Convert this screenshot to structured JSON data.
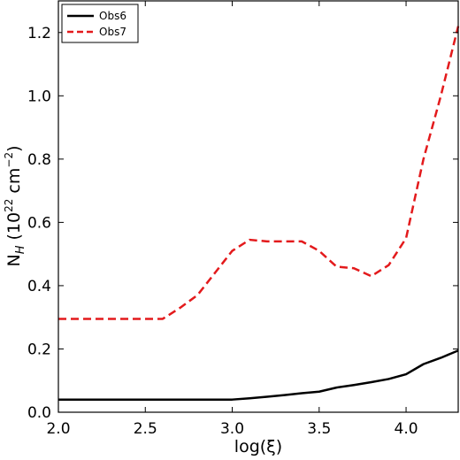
{
  "chart_data": {
    "type": "line",
    "xlabel": "log(ξ)",
    "ylabel_base": "N",
    "ylabel_sub": "H",
    "ylabel_pre": " (10",
    "ylabel_exp1": "22",
    "ylabel_mid": " cm",
    "ylabel_exp2": "−2",
    "ylabel_post": ")",
    "xlim": [
      2.0,
      4.3
    ],
    "ylim": [
      0.0,
      1.3
    ],
    "xticks": [
      2.0,
      2.5,
      3.0,
      3.5,
      4.0
    ],
    "xtick_labels": [
      "2.0",
      "2.5",
      "3.0",
      "3.5",
      "4.0"
    ],
    "yticks": [
      0.0,
      0.2,
      0.4,
      0.6,
      0.8,
      1.0,
      1.2
    ],
    "ytick_labels": [
      "0.0",
      "0.2",
      "0.4",
      "0.6",
      "0.8",
      "1.0",
      "1.2"
    ],
    "grid": false,
    "legend_position": "top-left",
    "series": [
      {
        "name": "Obs6",
        "color": "#000000",
        "style": "solid",
        "x": [
          2.0,
          2.1,
          2.2,
          2.3,
          2.4,
          2.5,
          2.6,
          2.7,
          2.8,
          2.9,
          3.0,
          3.1,
          3.2,
          3.3,
          3.4,
          3.5,
          3.6,
          3.7,
          3.8,
          3.9,
          4.0,
          4.1,
          4.2,
          4.3
        ],
        "y": [
          0.04,
          0.04,
          0.04,
          0.04,
          0.04,
          0.04,
          0.04,
          0.04,
          0.04,
          0.04,
          0.04,
          0.044,
          0.049,
          0.054,
          0.06,
          0.065,
          0.078,
          0.086,
          0.095,
          0.105,
          0.12,
          0.152,
          0.172,
          0.195
        ]
      },
      {
        "name": "Obs7",
        "color": "#e31a1c",
        "style": "dashed",
        "x": [
          2.0,
          2.1,
          2.2,
          2.3,
          2.4,
          2.5,
          2.6,
          2.7,
          2.8,
          2.9,
          3.0,
          3.1,
          3.2,
          3.3,
          3.4,
          3.5,
          3.6,
          3.7,
          3.8,
          3.9,
          4.0,
          4.1,
          4.2,
          4.3
        ],
        "y": [
          0.295,
          0.295,
          0.295,
          0.295,
          0.295,
          0.295,
          0.295,
          0.33,
          0.37,
          0.44,
          0.51,
          0.545,
          0.54,
          0.54,
          0.54,
          0.51,
          0.46,
          0.455,
          0.43,
          0.465,
          0.55,
          0.8,
          1.0,
          1.22
        ]
      }
    ]
  }
}
